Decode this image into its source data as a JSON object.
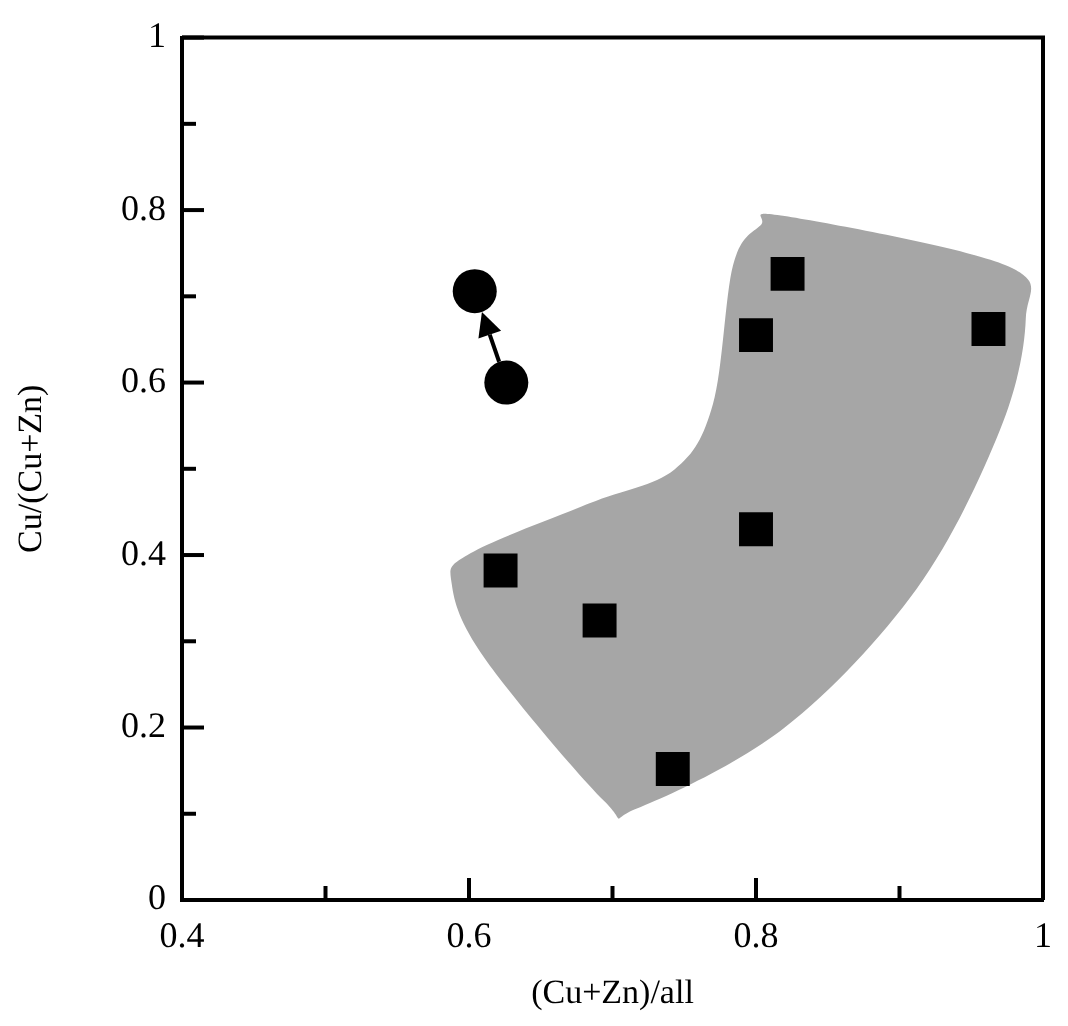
{
  "chart_data": {
    "type": "scatter",
    "xlabel": "(Cu+Zn)/all",
    "ylabel": "Cu/(Cu+Zn)",
    "xlim": [
      0.4,
      1
    ],
    "ylim": [
      0,
      1
    ],
    "xticks": [
      0.4,
      {
        "value": 0.5,
        "label": null
      },
      0.6,
      {
        "value": 0.7,
        "label": null
      },
      0.8,
      {
        "value": 0.9,
        "label": null
      },
      1
    ],
    "yticks": [
      0,
      {
        "value": 0.1,
        "label": null
      },
      0.2,
      {
        "value": 0.3,
        "label": null
      },
      0.4,
      {
        "value": 0.5,
        "label": null
      },
      0.6,
      {
        "value": 0.7,
        "label": null
      },
      0.8,
      {
        "value": 0.9,
        "label": null
      },
      1
    ],
    "grid": false,
    "series": [
      {
        "color": "#000000",
        "marker": "square",
        "x": [
          0.822,
          0.8,
          0.962,
          0.8,
          0.622,
          0.691,
          0.742
        ],
        "values": [
          0.726,
          0.655,
          0.662,
          0.43,
          0.382,
          0.324,
          0.152
        ]
      },
      {
        "color": "#000000",
        "marker": "circle",
        "x": [
          0.604,
          0.626
        ],
        "values": [
          0.706,
          0.6
        ]
      }
    ]
  }
}
